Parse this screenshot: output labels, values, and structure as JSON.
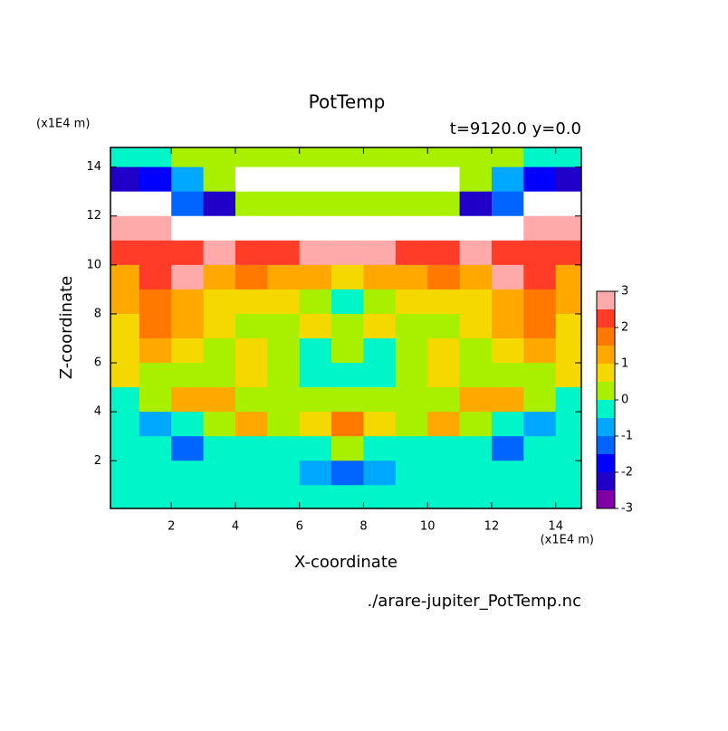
{
  "chart_data": {
    "type": "contour",
    "title": "PotTemp",
    "subtitle": "t=9120.0 y=0.0",
    "x_label": "X-coordinate",
    "y_label": "Z-coordinate",
    "x_unit": "(x1E4 m)",
    "y_unit": "(x1E4 m)",
    "source": "./arare-jupiter_PotTemp.nc",
    "xlim": [
      0.1,
      14.8
    ],
    "ylim": [
      0.05,
      14.8
    ],
    "xticks": [
      2,
      4,
      6,
      8,
      10,
      12,
      14
    ],
    "yticks": [
      2,
      4,
      6,
      8,
      10,
      12,
      14
    ],
    "x": [
      0.5,
      1.5,
      2.5,
      3.5,
      4.5,
      5.5,
      6.5,
      7.5,
      8.5,
      9.5,
      10.5,
      11.5,
      12.5,
      13.5,
      14.5
    ],
    "y": [
      14.5,
      13.5,
      12.5,
      11.5,
      10.5,
      9.5,
      8.5,
      7.5,
      6.5,
      5.5,
      4.5,
      3.5,
      2.5,
      1.5,
      0.5
    ],
    "z": [
      [
        0,
        0,
        0.3,
        0.3,
        0.2,
        0.3,
        0.3,
        0.3,
        0.3,
        0.3,
        0.2,
        0.3,
        0.3,
        0,
        0
      ],
      [
        -2.2,
        -1.5,
        -0.5,
        0.5,
        4,
        4,
        4,
        4,
        4,
        4,
        4,
        0.5,
        -0.5,
        -1.5,
        -2.2
      ],
      [
        4,
        4,
        -1.2,
        -2.2,
        0.3,
        0.2,
        0.3,
        0.3,
        0.3,
        0.2,
        0.3,
        -2.2,
        -1.2,
        4,
        4
      ],
      [
        2.7,
        2.8,
        4,
        4,
        4,
        4,
        4,
        4,
        4,
        4,
        4,
        4,
        4,
        2.8,
        2.7
      ],
      [
        2.2,
        2.2,
        2.3,
        2.6,
        2.3,
        2.5,
        2.7,
        2.8,
        2.7,
        2.5,
        2.3,
        2.6,
        2.3,
        2.2,
        2.2
      ],
      [
        1.5,
        2.2,
        2.6,
        1.3,
        1.8,
        1.5,
        1.2,
        1.0,
        1.2,
        1.5,
        1.8,
        1.3,
        2.6,
        2.2,
        1.5
      ],
      [
        1.2,
        1.6,
        1.3,
        0.8,
        1.0,
        0.6,
        0.4,
        -0.2,
        0.4,
        0.6,
        1.0,
        0.8,
        1.3,
        1.6,
        1.2
      ],
      [
        1.0,
        1.8,
        1.2,
        0.6,
        0.5,
        0.3,
        0.6,
        0.2,
        0.6,
        0.3,
        0.5,
        0.6,
        1.2,
        1.8,
        1.0
      ],
      [
        0.8,
        1.2,
        0.6,
        0.3,
        0.6,
        0.4,
        -0.2,
        0.2,
        -0.2,
        0.4,
        0.6,
        0.3,
        0.6,
        1.2,
        0.8
      ],
      [
        0.6,
        0.5,
        0.3,
        0.2,
        0.8,
        0.5,
        -0.3,
        -0.3,
        -0.3,
        0.5,
        0.8,
        0.2,
        0.3,
        0.5,
        0.6
      ],
      [
        -0.3,
        0.5,
        1.2,
        1.5,
        0.3,
        0.5,
        0.3,
        0.4,
        0.3,
        0.5,
        0.3,
        1.5,
        1.2,
        0.5,
        -0.3
      ],
      [
        -0.3,
        -0.8,
        -0.3,
        0.4,
        1.2,
        0.3,
        0.8,
        1.6,
        0.8,
        0.3,
        1.2,
        0.4,
        -0.3,
        -0.8,
        -0.3
      ],
      [
        -0.4,
        -0.3,
        -1.1,
        -0.3,
        -0.3,
        -0.3,
        -0.2,
        0.2,
        -0.2,
        -0.3,
        -0.3,
        -0.3,
        -1.1,
        -0.3,
        -0.4
      ],
      [
        -0.3,
        -0.3,
        -0.3,
        -0.3,
        -0.3,
        -0.3,
        -0.6,
        -1.2,
        -0.6,
        -0.3,
        -0.3,
        -0.3,
        -0.3,
        -0.3,
        -0.3
      ],
      [
        -0.3,
        -0.3,
        -0.3,
        -0.3,
        -0.3,
        -0.3,
        -0.3,
        -0.3,
        -0.3,
        -0.3,
        -0.3,
        -0.3,
        -0.3,
        -0.3,
        -0.3
      ]
    ],
    "levels": [
      -3,
      -2.5,
      -2,
      -1.5,
      -1,
      -0.5,
      0,
      0.5,
      1,
      1.5,
      2,
      2.5,
      3
    ],
    "colors": [
      "#8000a8",
      "#2000c8",
      "#0000ff",
      "#0064ff",
      "#00a8ff",
      "#00f5c8",
      "#a8f000",
      "#f5d800",
      "#ffa800",
      "#ff7800",
      "#ff3c28",
      "#ffaaaa"
    ],
    "colorbar_ticks": [
      -3,
      -2,
      -1,
      0,
      1,
      2,
      3
    ]
  }
}
